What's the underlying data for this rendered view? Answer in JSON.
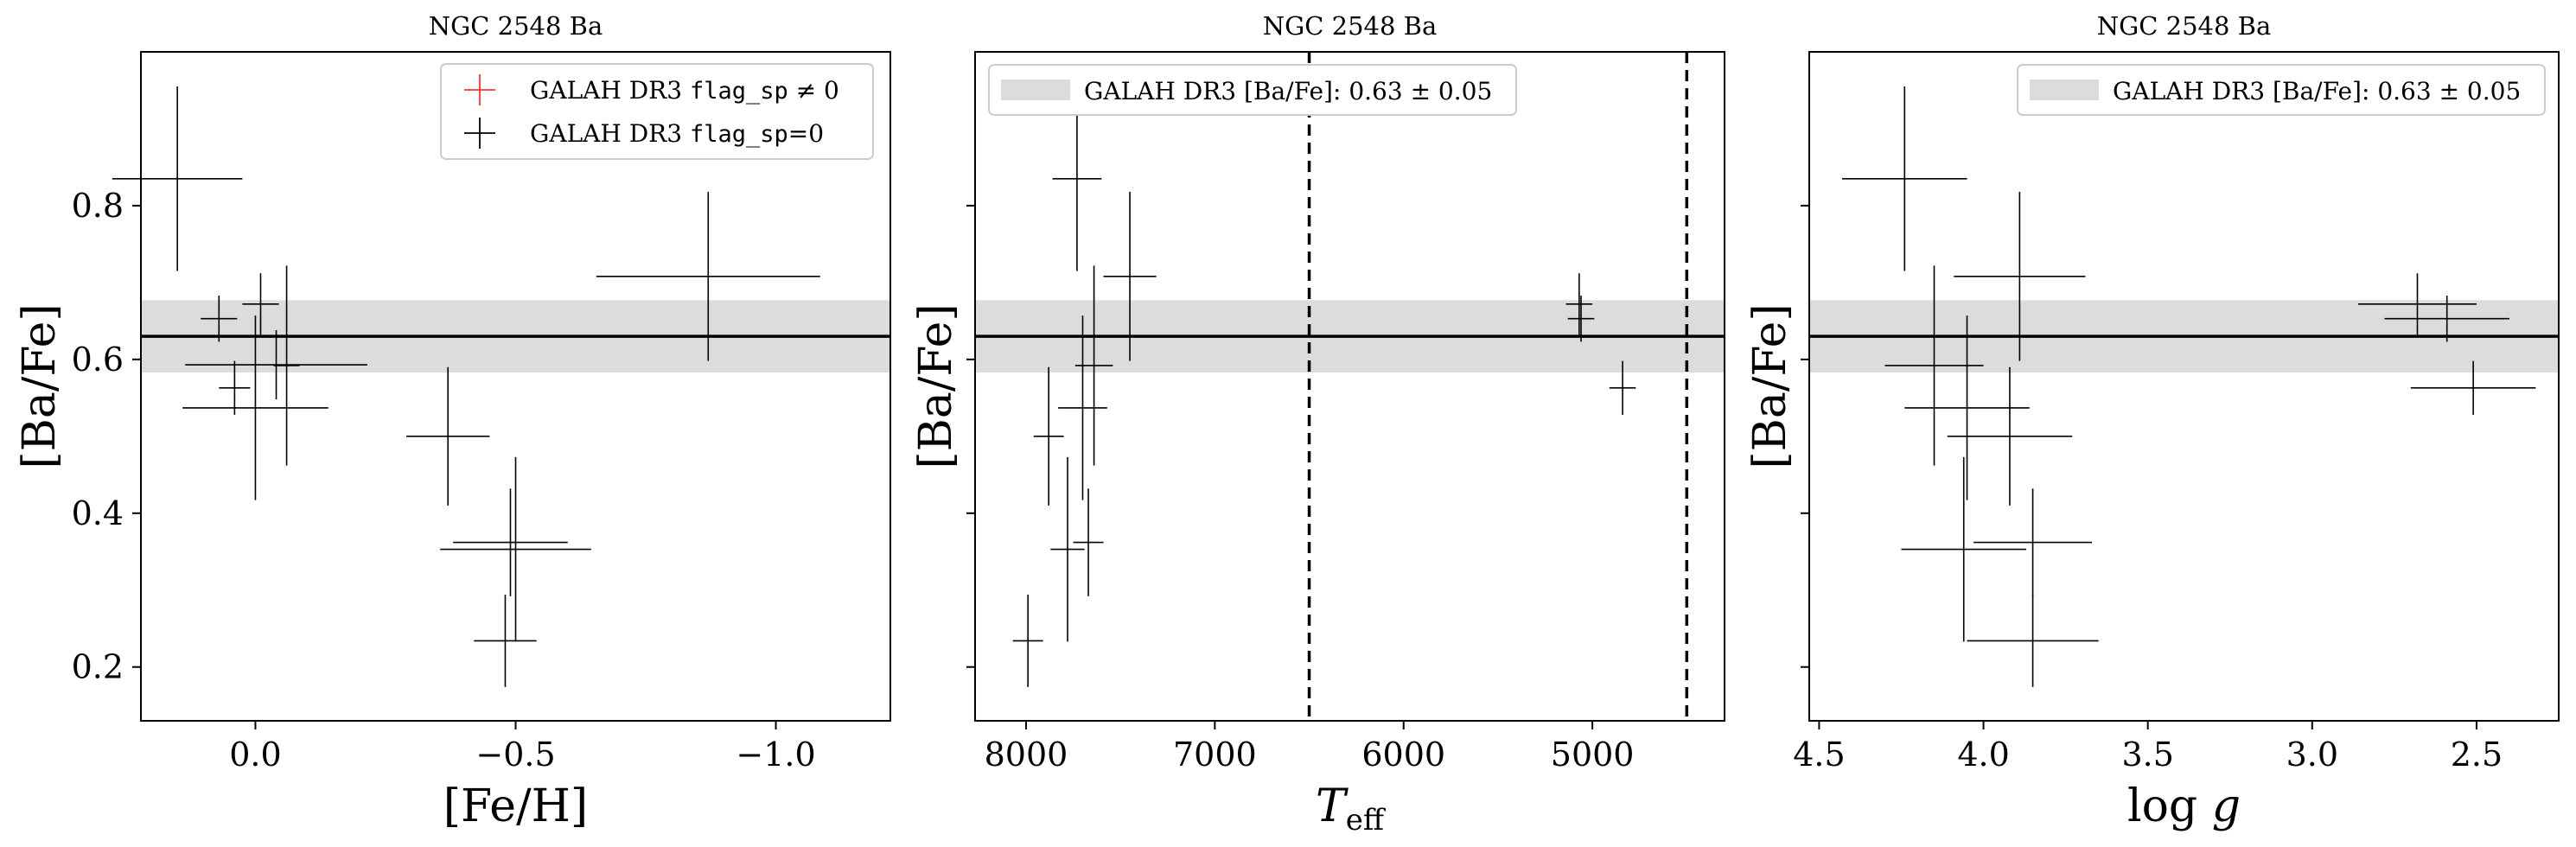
{
  "figure": {
    "colors": {
      "frame": "#000000",
      "band": "#dcdcdc",
      "reference_line": "#000000",
      "point_flag0": "#000000",
      "point_flag_nonzero": "#ff3333",
      "legend_border": "#cccccc"
    }
  },
  "chart_data": [
    {
      "type": "scatter",
      "title": "NGC 2548 Ba",
      "xlabel": "[Fe/H]",
      "ylabel": "[Ba/Fe]",
      "xlim": [
        0.22,
        -1.22
      ],
      "ylim": [
        0.13,
        1.0
      ],
      "xticks": [
        0.0,
        -0.5,
        -1.0
      ],
      "xtick_labels": [
        "0.0",
        "−0.5",
        "−1.0"
      ],
      "yticks": [
        0.2,
        0.4,
        0.6,
        0.8
      ],
      "ytick_labels": [
        "0.2",
        "0.4",
        "0.6",
        "0.8"
      ],
      "show_yticklabels": true,
      "reference": {
        "value": 0.63,
        "err": 0.047
      },
      "vlines": [],
      "legend": {
        "position": "upper right",
        "entries": [
          {
            "kind": "cross",
            "color": "#ff3333",
            "label_pre": "GALAH DR3 ",
            "label_mono": "flag_sp",
            "label_post": " ≠ 0"
          },
          {
            "kind": "cross",
            "color": "#000000",
            "label_pre": "GALAH DR3 ",
            "label_mono": "flag_sp",
            "label_post": "=0"
          }
        ]
      },
      "series": [
        {
          "name": "GALAH DR3 flag_sp=0",
          "color": "#000000",
          "points": [
            {
              "x": 0.15,
              "y": 0.835,
              "xerr": 0.125,
              "yerr": 0.12
            },
            {
              "x": 0.07,
              "y": 0.653,
              "xerr": 0.035,
              "yerr": 0.03
            },
            {
              "x": -0.01,
              "y": 0.672,
              "xerr": 0.035,
              "yerr": 0.04
            },
            {
              "x": 0.04,
              "y": 0.563,
              "xerr": 0.03,
              "yerr": 0.035
            },
            {
              "x": -0.04,
              "y": 0.593,
              "xerr": 0.175,
              "yerr": 0.045
            },
            {
              "x": 0.0,
              "y": 0.537,
              "xerr": 0.14,
              "yerr": 0.12
            },
            {
              "x": -0.06,
              "y": 0.592,
              "xerr": 0.025,
              "yerr": 0.13
            },
            {
              "x": -0.37,
              "y": 0.5,
              "xerr": 0.08,
              "yerr": 0.09
            },
            {
              "x": -0.49,
              "y": 0.362,
              "xerr": 0.11,
              "yerr": 0.07
            },
            {
              "x": -0.5,
              "y": 0.353,
              "xerr": 0.145,
              "yerr": 0.12
            },
            {
              "x": -0.48,
              "y": 0.234,
              "xerr": 0.06,
              "yerr": 0.06
            },
            {
              "x": -0.87,
              "y": 0.708,
              "xerr": 0.215,
              "yerr": 0.11
            }
          ]
        }
      ]
    },
    {
      "type": "scatter",
      "title": "NGC 2548 Ba",
      "xlabel": "T_eff",
      "ylabel": "[Ba/Fe]",
      "xlim": [
        8270,
        4300
      ],
      "ylim": [
        0.13,
        1.0
      ],
      "xticks": [
        8000,
        7000,
        6000,
        5000
      ],
      "xtick_labels": [
        "8000",
        "7000",
        "6000",
        "5000"
      ],
      "yticks": [
        0.2,
        0.4,
        0.6,
        0.8
      ],
      "ytick_labels": [
        "",
        "",
        "",
        ""
      ],
      "show_yticklabels": false,
      "reference": {
        "value": 0.63,
        "err": 0.047
      },
      "vlines": [
        6500,
        4500
      ],
      "legend": {
        "position": "upper left",
        "entries": [
          {
            "kind": "band",
            "color": "#dcdcdc",
            "label_pre": "GALAH DR3 [Ba/Fe]: 0.63 ± 0.05",
            "label_mono": "",
            "label_post": ""
          }
        ]
      },
      "series": [
        {
          "name": "GALAH DR3 flag_sp=0",
          "color": "#000000",
          "points": [
            {
              "x": 7730,
              "y": 0.835,
              "xerr": 130,
              "yerr": 0.12
            },
            {
              "x": 7450,
              "y": 0.708,
              "xerr": 140,
              "yerr": 0.11
            },
            {
              "x": 7640,
              "y": 0.592,
              "xerr": 100,
              "yerr": 0.13
            },
            {
              "x": 7700,
              "y": 0.537,
              "xerr": 130,
              "yerr": 0.12
            },
            {
              "x": 7880,
              "y": 0.5,
              "xerr": 80,
              "yerr": 0.09
            },
            {
              "x": 7670,
              "y": 0.362,
              "xerr": 80,
              "yerr": 0.07
            },
            {
              "x": 7780,
              "y": 0.353,
              "xerr": 90,
              "yerr": 0.12
            },
            {
              "x": 7990,
              "y": 0.234,
              "xerr": 80,
              "yerr": 0.06
            },
            {
              "x": 5070,
              "y": 0.672,
              "xerr": 70,
              "yerr": 0.04
            },
            {
              "x": 5060,
              "y": 0.653,
              "xerr": 70,
              "yerr": 0.03
            },
            {
              "x": 4840,
              "y": 0.563,
              "xerr": 70,
              "yerr": 0.035
            }
          ]
        }
      ]
    },
    {
      "type": "scatter",
      "title": "NGC 2548 Ba",
      "xlabel": "log g",
      "ylabel": "[Ba/Fe]",
      "xlim": [
        4.53,
        2.25
      ],
      "ylim": [
        0.13,
        1.0
      ],
      "xticks": [
        4.5,
        4.0,
        3.5,
        3.0,
        2.5
      ],
      "xtick_labels": [
        "4.5",
        "4.0",
        "3.5",
        "3.0",
        "2.5"
      ],
      "yticks": [
        0.2,
        0.4,
        0.6,
        0.8
      ],
      "ytick_labels": [
        "",
        "",
        "",
        ""
      ],
      "show_yticklabels": false,
      "reference": {
        "value": 0.63,
        "err": 0.047
      },
      "vlines": [],
      "legend": {
        "position": "upper right",
        "entries": [
          {
            "kind": "band",
            "color": "#dcdcdc",
            "label_pre": "GALAH DR3 [Ba/Fe]: 0.63 ± 0.05",
            "label_mono": "",
            "label_post": ""
          }
        ]
      },
      "series": [
        {
          "name": "GALAH DR3 flag_sp=0",
          "color": "#000000",
          "points": [
            {
              "x": 4.24,
              "y": 0.835,
              "xerr": 0.19,
              "yerr": 0.12
            },
            {
              "x": 3.89,
              "y": 0.708,
              "xerr": 0.2,
              "yerr": 0.11
            },
            {
              "x": 4.15,
              "y": 0.592,
              "xerr": 0.15,
              "yerr": 0.13
            },
            {
              "x": 4.05,
              "y": 0.537,
              "xerr": 0.19,
              "yerr": 0.12
            },
            {
              "x": 3.92,
              "y": 0.5,
              "xerr": 0.19,
              "yerr": 0.09
            },
            {
              "x": 3.85,
              "y": 0.362,
              "xerr": 0.18,
              "yerr": 0.07
            },
            {
              "x": 4.06,
              "y": 0.353,
              "xerr": 0.19,
              "yerr": 0.12
            },
            {
              "x": 3.85,
              "y": 0.234,
              "xerr": 0.2,
              "yerr": 0.06
            },
            {
              "x": 2.68,
              "y": 0.672,
              "xerr": 0.18,
              "yerr": 0.04
            },
            {
              "x": 2.59,
              "y": 0.653,
              "xerr": 0.19,
              "yerr": 0.03
            },
            {
              "x": 2.51,
              "y": 0.563,
              "xerr": 0.19,
              "yerr": 0.035
            }
          ]
        }
      ]
    }
  ]
}
